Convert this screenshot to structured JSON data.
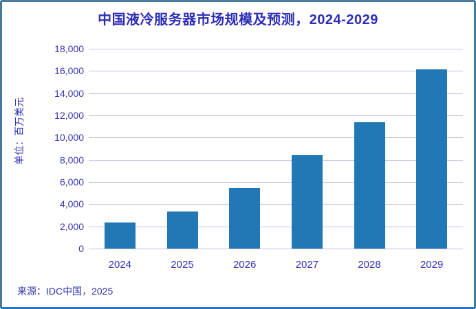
{
  "card": {
    "background": "#ffffff",
    "border_top_color": "#4a7c9e",
    "border_bottom_color": "#2d73c4"
  },
  "chart_data": {
    "type": "bar",
    "title": "中国液冷服务器市场规模及预测，2024-2029",
    "ylabel": "单位：百万美元",
    "xlabel": "",
    "categories": [
      "2024",
      "2025",
      "2026",
      "2027",
      "2028",
      "2029"
    ],
    "values": [
      2350,
      3350,
      5450,
      8400,
      11400,
      16150
    ],
    "ylim": [
      0,
      18000
    ],
    "ytick_step": 2000,
    "ytick_labels": [
      "18,000",
      "16,000",
      "14,000",
      "12,000",
      "10,000",
      "8,000",
      "6,000",
      "4,000",
      "2,000",
      "0"
    ],
    "grid": true,
    "legend": "none",
    "bar_color": "#2278b5",
    "grid_color": "#bfbfe6",
    "text_color": "#3434b4",
    "source": "来源：IDC中国，2025"
  }
}
